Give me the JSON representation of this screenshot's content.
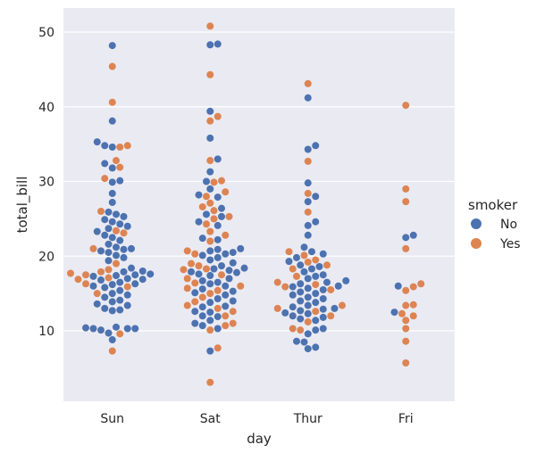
{
  "chart_data": {
    "type": "scatter",
    "subtype": "swarm",
    "xlabel": "day",
    "ylabel": "total_bill",
    "categories": [
      "Sun",
      "Sat",
      "Thur",
      "Fri"
    ],
    "ylim": [
      1,
      52
    ],
    "yticks": [
      10,
      20,
      30,
      40,
      50
    ],
    "grid": true,
    "legend": {
      "title": "smoker",
      "placement": "right",
      "entries": [
        {
          "label": "No",
          "color": "#4c72b0"
        },
        {
          "label": "Yes",
          "color": "#dd8452"
        }
      ]
    },
    "series": [
      {
        "name": "No",
        "color": "#4c72b0",
        "points": [
          {
            "x": "Sun",
            "values": [
              8.8,
              9.7,
              10.1,
              10.3,
              10.3,
              10.3,
              10.4,
              10.5,
              12.7,
              12.8,
              13.0,
              13.4,
              13.6,
              13.9,
              14.1,
              14.5,
              14.8,
              15.0,
              15.4,
              15.8,
              16.0,
              16.2,
              16.3,
              16.5,
              16.8,
              16.9,
              17.0,
              17.3,
              17.4,
              17.5,
              17.6,
              17.9,
              18.0,
              18.4,
              19.4,
              19.8,
              20.1,
              20.5,
              20.7,
              20.9,
              21.0,
              21.2,
              21.6,
              22.1,
              22.5,
              22.8,
              23.3,
              23.7,
              24.0,
              24.3,
              24.6,
              24.9,
              25.3,
              25.6,
              25.9,
              27.2,
              28.4,
              29.9,
              30.1,
              31.8,
              32.4,
              34.6,
              34.8,
              35.3,
              38.1,
              48.2
            ]
          },
          {
            "x": "Sat",
            "values": [
              7.3,
              10.3,
              10.7,
              11.0,
              11.4,
              11.9,
              12.0,
              12.5,
              12.6,
              13.2,
              13.3,
              13.8,
              14.0,
              14.3,
              14.8,
              15.1,
              15.3,
              15.6,
              16.0,
              16.3,
              16.5,
              16.7,
              17.0,
              17.4,
              17.6,
              17.8,
              17.9,
              18.1,
              18.3,
              18.4,
              18.7,
              19.1,
              19.5,
              19.8,
              20.1,
              20.3,
              20.5,
              20.7,
              20.9,
              21.0,
              22.2,
              22.4,
              24.1,
              24.6,
              25.3,
              25.6,
              26.4,
              27.9,
              28.2,
              29.0,
              30.0,
              31.3,
              33.0,
              35.8,
              39.4,
              48.3,
              48.4
            ]
          },
          {
            "x": "Thur",
            "values": [
              7.6,
              7.8,
              8.5,
              8.6,
              9.6,
              10.1,
              10.3,
              11.4,
              11.6,
              11.8,
              12.0,
              12.3,
              12.4,
              12.7,
              12.9,
              13.0,
              13.2,
              13.4,
              13.8,
              14.0,
              14.3,
              14.5,
              14.8,
              15.0,
              15.2,
              15.5,
              15.7,
              15.9,
              16.0,
              16.3,
              16.5,
              16.7,
              17.0,
              17.3,
              17.5,
              17.9,
              18.3,
              18.6,
              18.8,
              19.3,
              19.8,
              20.3,
              20.6,
              21.2,
              22.8,
              24.1,
              24.6,
              27.3,
              28.0,
              29.8,
              34.3,
              34.8,
              41.2
            ]
          },
          {
            "x": "Fri",
            "values": [
              12.5,
              16.0,
              22.5,
              22.8
            ]
          }
        ]
      },
      {
        "name": "Yes",
        "color": "#dd8452",
        "points": [
          {
            "x": "Sun",
            "values": [
              7.3,
              9.6,
              15.0,
              15.9,
              16.3,
              16.9,
              17.1,
              17.5,
              17.7,
              17.9,
              18.2,
              19.0,
              21.0,
              23.1,
              23.4,
              26.0,
              30.4,
              31.9,
              32.8,
              34.6,
              34.8,
              40.6,
              45.4
            ]
          },
          {
            "x": "Sat",
            "values": [
              3.1,
              7.7,
              10.1,
              10.7,
              11.0,
              12.0,
              12.6,
              13.0,
              13.4,
              13.9,
              14.5,
              15.0,
              15.4,
              15.7,
              16.0,
              16.4,
              17.0,
              17.5,
              18.2,
              18.3,
              18.7,
              19.0,
              20.3,
              20.7,
              22.0,
              22.8,
              23.3,
              24.3,
              25.0,
              25.3,
              26.1,
              26.6,
              27.1,
              28.0,
              28.6,
              29.9,
              30.1,
              32.8,
              38.1,
              38.7,
              44.3,
              50.8
            ]
          },
          {
            "x": "Thur",
            "values": [
              10.1,
              10.3,
              11.2,
              12.0,
              12.6,
              13.0,
              13.4,
              15.5,
              15.9,
              16.2,
              16.5,
              17.3,
              18.3,
              18.8,
              19.2,
              19.5,
              20.1,
              20.6,
              25.9,
              28.4,
              32.7,
              43.1
            ]
          },
          {
            "x": "Fri",
            "values": [
              5.7,
              8.6,
              10.3,
              11.4,
              12.0,
              12.3,
              13.4,
              13.5,
              15.4,
              15.9,
              16.3,
              21.0,
              27.3,
              29.0,
              40.2
            ]
          }
        ]
      }
    ]
  }
}
